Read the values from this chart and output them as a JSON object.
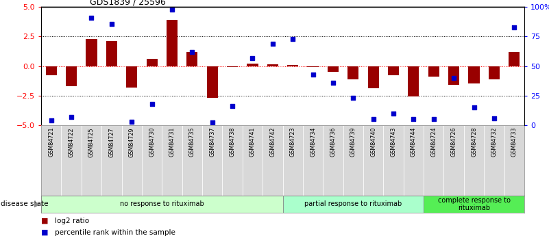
{
  "title": "GDS1839 / 25596",
  "samples": [
    "GSM84721",
    "GSM84722",
    "GSM84725",
    "GSM84727",
    "GSM84729",
    "GSM84730",
    "GSM84731",
    "GSM84735",
    "GSM84737",
    "GSM84738",
    "GSM84741",
    "GSM84742",
    "GSM84723",
    "GSM84734",
    "GSM84736",
    "GSM84739",
    "GSM84740",
    "GSM84743",
    "GSM84744",
    "GSM84724",
    "GSM84726",
    "GSM84728",
    "GSM84732",
    "GSM84733"
  ],
  "log2_ratio": [
    -0.8,
    -1.7,
    2.3,
    2.1,
    -1.8,
    0.6,
    3.9,
    1.2,
    -2.7,
    -0.1,
    0.2,
    0.15,
    0.1,
    -0.1,
    -0.5,
    -1.1,
    -1.9,
    -0.8,
    -2.6,
    -0.9,
    -1.6,
    -1.5,
    -1.1,
    1.2
  ],
  "percentile_rank": [
    4,
    7,
    91,
    86,
    3,
    18,
    98,
    62,
    2,
    16,
    57,
    69,
    73,
    43,
    36,
    23,
    5,
    10,
    5,
    5,
    40,
    15,
    6,
    83
  ],
  "groups": [
    {
      "label": "no response to rituximab",
      "start": 0,
      "end": 12,
      "color": "#ccffcc"
    },
    {
      "label": "partial response to rituximab",
      "start": 12,
      "end": 19,
      "color": "#aaffcc"
    },
    {
      "label": "complete response to\nrituximab",
      "start": 19,
      "end": 24,
      "color": "#55ee55"
    }
  ],
  "ylim": [
    -5,
    5
  ],
  "yticks_left": [
    -5,
    -2.5,
    0,
    2.5,
    5
  ],
  "ytick_right_labels": [
    "0",
    "25",
    "50",
    "75",
    "100%"
  ],
  "hlines_dotted": [
    2.5,
    -2.5
  ],
  "hline_red": 0,
  "bar_color": "#990000",
  "dot_color": "#0000cc",
  "bar_width": 0.55,
  "dot_size": 22,
  "legend_items": [
    {
      "label": "log2 ratio",
      "color": "#990000"
    },
    {
      "label": "percentile rank within the sample",
      "color": "#0000cc"
    }
  ],
  "disease_state_label": "disease state",
  "title_fontsize": 9,
  "label_fontsize": 7,
  "group_label_fontsize": 7
}
